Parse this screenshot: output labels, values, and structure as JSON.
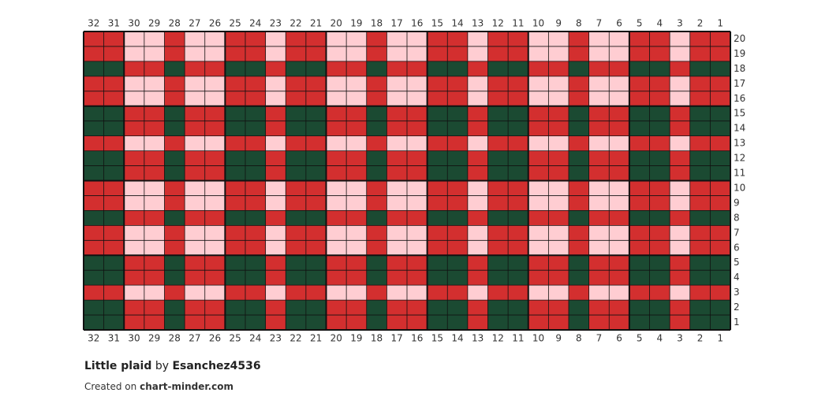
{
  "column_labels": [
    32,
    31,
    30,
    29,
    28,
    27,
    26,
    25,
    24,
    23,
    22,
    21,
    20,
    19,
    18,
    17,
    16,
    15,
    14,
    13,
    12,
    11,
    10,
    9,
    8,
    7,
    6,
    5,
    4,
    3,
    2,
    1
  ],
  "row_labels": [
    20,
    19,
    18,
    17,
    16,
    15,
    14,
    13,
    12,
    11,
    10,
    9,
    8,
    7,
    6,
    5,
    4,
    3,
    2,
    1
  ],
  "palette": {
    "R": "#d32f2f",
    "P": "#ffcdd2",
    "G": "#1b4a32"
  },
  "cells": [
    "RRPPRPPRRPRRPPRPPRRPRRPPRPPRRPRR",
    "RRPPRPPRRPRRPPRPPRRPRRPPRPPRRPRR",
    "GGRRGRRGGRGGRRGRRGGRGGRRGRRGGRGG",
    "RRPPRPPRRPRRPPRPPRRPRRPPRPPRRPRR",
    "RRPPRPPRRPRRPPRPPRRPRRPPRPPRRPRR",
    "GGRRGRRGGRGGRRGRRGGRGGRRGRRGGRGG",
    "GGRRGRRGGRGGRRGRRGGRGGRRGRRGGRGG",
    "RRPPRPPRRPRRPPRPPRRPRRPPRPPRRPRR",
    "GGRRGRRGGRGGRRGRRGGRGGRRGRRGGRGG",
    "GGRRGRRGGRGGRRGRRGGRGGRRGRRGGRGG",
    "RRPPRPPRRPRRPPRPPRRPRRPPRPPRRPRR",
    "RRPPRPPRRPRRPPRPPRRPRRPPRPPRRPRR",
    "GGRRGRRGGRGGRRGRRGGRGGRRGRRGGRGG",
    "RRPPRPPRRPRRPPRPPRRPRRPPRPPRRPRR",
    "RRPPRPPRRPRRPPRPPRRPRRPPRPPRRPRR",
    "GGRRGRRGGRGGRRGRRGGRGGRRGRRGGRGG",
    "GGRRGRRGGRGGRRGRRGGRGGRRGRRGGRGG",
    "RRPPRPPRRPRRPPRPPRRPRRPPRPPRRPRR",
    "GGRRGRRGGRGGRRGRRGGRGGRRGRRGGRGG",
    "GGRRGRRGGRGGRRGRRGGRGGRRGRRGGRGG"
  ],
  "title": {
    "name": "Little plaid",
    "by": "by",
    "author": "Esanchez4536"
  },
  "footer": {
    "prefix": "Created on",
    "site": "chart-minder.com"
  }
}
